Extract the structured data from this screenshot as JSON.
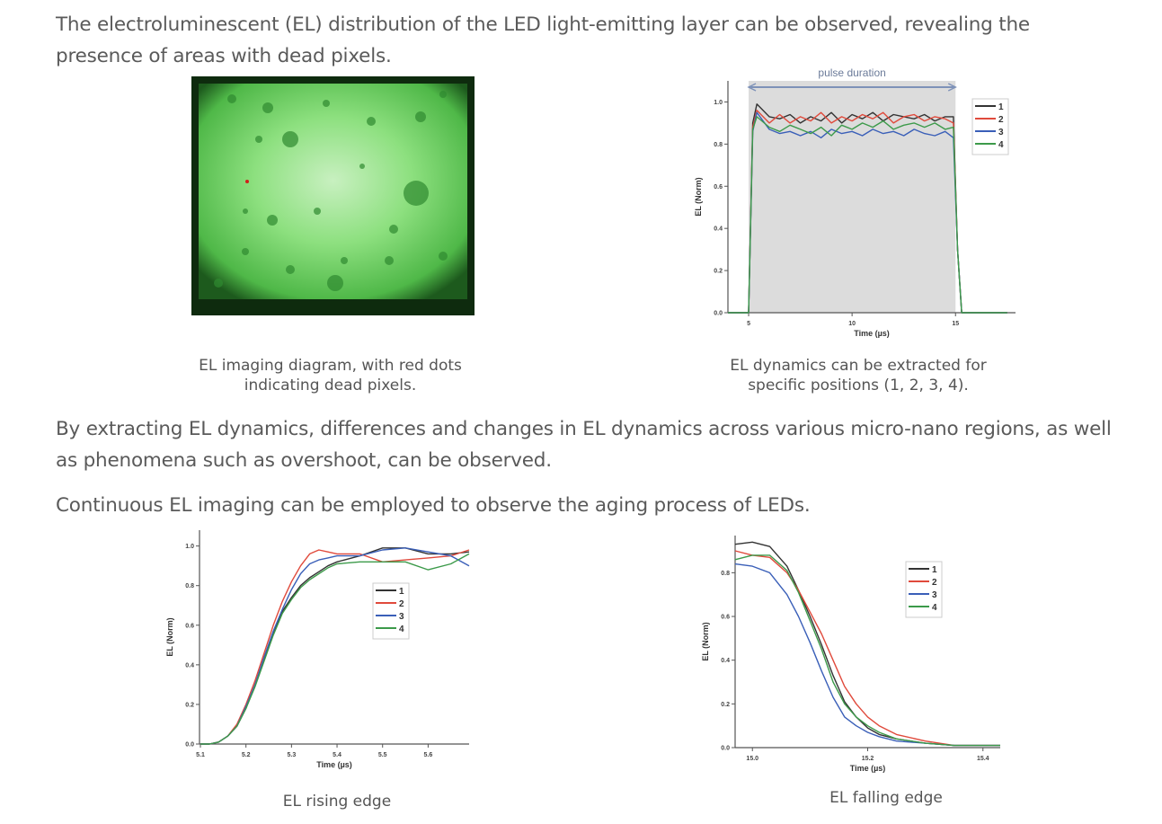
{
  "paragraphs": [
    "The electroluminescent (EL) distribution of the LED light-emitting layer can be observed, revealing the presence of areas with dead pixels.",
    "By extracting EL dynamics, differences and changes in EL dynamics across various micro-nano regions, as well as phenomena such as overshoot, can be observed.",
    "Continuous EL imaging can be employed to observe the aging process of LEDs."
  ],
  "captions": {
    "el_image": [
      "EL imaging diagram, with red dots",
      "indicating dead pixels."
    ],
    "el_dynamics": [
      "EL dynamics can be extracted for",
      "specific positions (1, 2, 3, 4)."
    ],
    "rising": "EL rising edge",
    "falling": "EL falling edge"
  },
  "colors": {
    "1": "#333333",
    "2": "#e04a3c",
    "3": "#3a5fb8",
    "4": "#3c9a4a",
    "el_green": "#5fd35a",
    "dead_pixel": "#d0201a"
  },
  "chart_data": [
    {
      "type": "line",
      "annotation": "pulse duration",
      "annotation_span": [
        5,
        15
      ],
      "shaded_region": [
        5,
        15
      ],
      "xlabel": "Time (µs)",
      "ylabel": "EL (Norm)",
      "xlim": [
        4,
        17.9
      ],
      "ylim": [
        0,
        1.1
      ],
      "xticks": [
        5,
        10,
        15
      ],
      "yticks": [
        0.0,
        0.2,
        0.4,
        0.6,
        0.8,
        1.0
      ],
      "legend": "right",
      "x": [
        4,
        5,
        5.2,
        5.4,
        6,
        6.5,
        7,
        7.5,
        8,
        8.5,
        9,
        9.5,
        10,
        10.5,
        11,
        11.5,
        12,
        12.5,
        13,
        13.5,
        14,
        14.5,
        14.9,
        15.1,
        15.3,
        17.5
      ],
      "series": [
        {
          "name": "1",
          "values": [
            0,
            0,
            0.9,
            0.99,
            0.93,
            0.92,
            0.94,
            0.9,
            0.93,
            0.91,
            0.95,
            0.9,
            0.94,
            0.92,
            0.95,
            0.91,
            0.94,
            0.93,
            0.92,
            0.94,
            0.91,
            0.93,
            0.93,
            0.3,
            0,
            0
          ]
        },
        {
          "name": "2",
          "values": [
            0,
            0,
            0.88,
            0.96,
            0.9,
            0.94,
            0.9,
            0.93,
            0.91,
            0.95,
            0.9,
            0.93,
            0.91,
            0.94,
            0.92,
            0.95,
            0.9,
            0.93,
            0.94,
            0.91,
            0.93,
            0.92,
            0.9,
            0.3,
            0,
            0
          ]
        },
        {
          "name": "3",
          "values": [
            0,
            0,
            0.86,
            0.95,
            0.87,
            0.85,
            0.86,
            0.84,
            0.86,
            0.83,
            0.87,
            0.85,
            0.86,
            0.84,
            0.87,
            0.85,
            0.86,
            0.84,
            0.87,
            0.85,
            0.84,
            0.86,
            0.83,
            0.3,
            0,
            0
          ]
        },
        {
          "name": "4",
          "values": [
            0,
            0,
            0.87,
            0.93,
            0.88,
            0.86,
            0.89,
            0.87,
            0.85,
            0.88,
            0.84,
            0.89,
            0.87,
            0.9,
            0.88,
            0.91,
            0.87,
            0.89,
            0.9,
            0.88,
            0.9,
            0.87,
            0.88,
            0.3,
            0,
            0
          ]
        }
      ]
    },
    {
      "type": "line",
      "xlabel": "Time (µs)",
      "ylabel": "EL (Norm)",
      "xlim": [
        5.098,
        5.69
      ],
      "ylim": [
        0,
        1.08
      ],
      "xticks": [
        5.1,
        5.2,
        5.3,
        5.4,
        5.5,
        5.6
      ],
      "yticks": [
        0.0,
        0.2,
        0.4,
        0.6,
        0.8,
        1.0
      ],
      "legend": "center-right",
      "x": [
        5.1,
        5.12,
        5.14,
        5.16,
        5.18,
        5.2,
        5.22,
        5.24,
        5.26,
        5.28,
        5.3,
        5.32,
        5.34,
        5.36,
        5.38,
        5.4,
        5.45,
        5.5,
        5.55,
        5.6,
        5.65,
        5.69
      ],
      "series": [
        {
          "name": "1",
          "values": [
            0,
            0,
            0.01,
            0.04,
            0.09,
            0.18,
            0.3,
            0.43,
            0.56,
            0.67,
            0.74,
            0.8,
            0.84,
            0.87,
            0.9,
            0.92,
            0.95,
            0.99,
            0.99,
            0.96,
            0.96,
            0.97
          ]
        },
        {
          "name": "2",
          "values": [
            0,
            0,
            0.01,
            0.04,
            0.1,
            0.2,
            0.32,
            0.46,
            0.6,
            0.72,
            0.82,
            0.9,
            0.96,
            0.98,
            0.97,
            0.96,
            0.96,
            0.92,
            0.93,
            0.94,
            0.95,
            0.98
          ]
        },
        {
          "name": "3",
          "values": [
            0,
            0,
            0.01,
            0.04,
            0.09,
            0.19,
            0.3,
            0.44,
            0.57,
            0.68,
            0.78,
            0.86,
            0.91,
            0.93,
            0.94,
            0.95,
            0.95,
            0.98,
            0.99,
            0.97,
            0.95,
            0.9
          ]
        },
        {
          "name": "4",
          "values": [
            0,
            0,
            0.01,
            0.04,
            0.09,
            0.18,
            0.29,
            0.42,
            0.55,
            0.66,
            0.73,
            0.79,
            0.83,
            0.86,
            0.89,
            0.91,
            0.92,
            0.92,
            0.92,
            0.88,
            0.91,
            0.96
          ]
        }
      ]
    },
    {
      "type": "line",
      "xlabel": "Time (µs)",
      "ylabel": "EL (Norm)",
      "xlim": [
        14.97,
        15.43
      ],
      "ylim": [
        0,
        0.97
      ],
      "xticks": [
        15.0,
        15.2,
        15.4
      ],
      "yticks": [
        0.0,
        0.2,
        0.4,
        0.6,
        0.8
      ],
      "legend": "top-right",
      "x": [
        14.97,
        15,
        15.03,
        15.06,
        15.08,
        15.1,
        15.12,
        15.14,
        15.16,
        15.18,
        15.2,
        15.22,
        15.25,
        15.3,
        15.35,
        15.43
      ],
      "series": [
        {
          "name": "1",
          "values": [
            0.93,
            0.94,
            0.92,
            0.83,
            0.72,
            0.6,
            0.47,
            0.33,
            0.21,
            0.14,
            0.09,
            0.06,
            0.04,
            0.02,
            0.01,
            0.01
          ]
        },
        {
          "name": "2",
          "values": [
            0.9,
            0.88,
            0.87,
            0.8,
            0.72,
            0.62,
            0.52,
            0.4,
            0.28,
            0.2,
            0.14,
            0.1,
            0.06,
            0.03,
            0.01,
            0.01
          ]
        },
        {
          "name": "3",
          "values": [
            0.84,
            0.83,
            0.8,
            0.7,
            0.6,
            0.48,
            0.35,
            0.23,
            0.14,
            0.1,
            0.07,
            0.05,
            0.03,
            0.02,
            0.01,
            0.01
          ]
        },
        {
          "name": "4",
          "values": [
            0.86,
            0.88,
            0.88,
            0.81,
            0.71,
            0.58,
            0.45,
            0.3,
            0.2,
            0.14,
            0.1,
            0.07,
            0.04,
            0.02,
            0.01,
            0.01
          ]
        }
      ]
    }
  ]
}
